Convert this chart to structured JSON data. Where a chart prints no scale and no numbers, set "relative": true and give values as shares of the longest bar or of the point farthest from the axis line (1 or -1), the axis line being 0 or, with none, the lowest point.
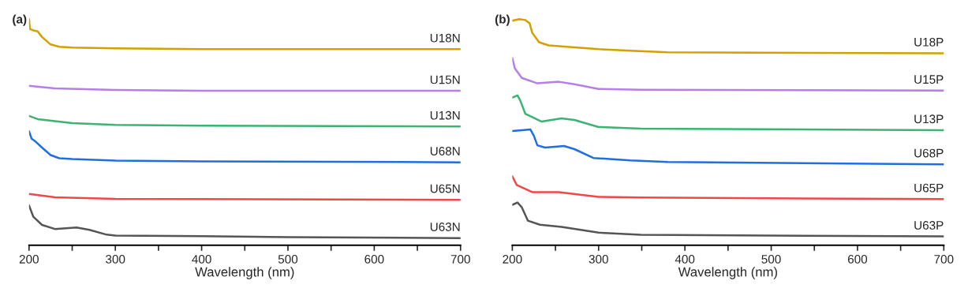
{
  "chart_data": [
    {
      "type": "line",
      "title": "(a)",
      "xlabel": "Wavelength (nm)",
      "relative": true,
      "xlim": [
        200,
        700
      ],
      "xticks": [
        200,
        {
          "value": 250,
          "label": null
        },
        300,
        {
          "value": 350,
          "label": null
        },
        400,
        {
          "value": 450,
          "label": null
        },
        500,
        {
          "value": 550,
          "label": null
        },
        600,
        {
          "value": 650,
          "label": null
        },
        700
      ],
      "tick_labels": "x",
      "grid": false,
      "legend": false,
      "series": [
        {
          "name": "U18N",
          "color": "#d4a000",
          "x": [
            200,
            201,
            205,
            210,
            215,
            225,
            235,
            250,
            300,
            400,
            500,
            600,
            700
          ],
          "values": [
            1.0,
            0.957,
            0.95,
            0.946,
            0.921,
            0.888,
            0.878,
            0.874,
            0.871,
            0.867,
            0.867,
            0.867,
            0.867
          ]
        },
        {
          "name": "U15N",
          "color": "#b57ee8",
          "x": [
            200,
            230,
            300,
            400,
            700
          ],
          "values": [
            0.705,
            0.694,
            0.687,
            0.683,
            0.683
          ]
        },
        {
          "name": "U13N",
          "color": "#3cb371",
          "x": [
            200,
            210,
            250,
            300,
            400,
            700
          ],
          "values": [
            0.572,
            0.558,
            0.54,
            0.532,
            0.529,
            0.525
          ]
        },
        {
          "name": "U68N",
          "color": "#1f6fe0",
          "x": [
            200,
            203,
            208,
            215,
            225,
            235,
            250,
            300,
            400,
            700
          ],
          "values": [
            0.504,
            0.471,
            0.457,
            0.432,
            0.399,
            0.385,
            0.381,
            0.374,
            0.371,
            0.367
          ]
        },
        {
          "name": "U65N",
          "color": "#f04848",
          "x": [
            200,
            230,
            300,
            700
          ],
          "values": [
            0.227,
            0.212,
            0.205,
            0.201
          ]
        },
        {
          "name": "U63N",
          "color": "#555555",
          "x": [
            200,
            205,
            215,
            230,
            255,
            270,
            290,
            300,
            400,
            500,
            700
          ],
          "values": [
            0.176,
            0.126,
            0.09,
            0.072,
            0.079,
            0.068,
            0.047,
            0.043,
            0.04,
            0.036,
            0.032
          ]
        }
      ]
    },
    {
      "type": "line",
      "title": "(b)",
      "xlabel": "Wavelength (nm)",
      "relative": true,
      "xlim": [
        200,
        700
      ],
      "xticks": [
        200,
        {
          "value": 250,
          "label": null
        },
        300,
        {
          "value": 350,
          "label": null
        },
        400,
        {
          "value": 450,
          "label": null
        },
        500,
        {
          "value": 550,
          "label": null
        },
        600,
        {
          "value": 650,
          "label": null
        },
        700
      ],
      "tick_labels": "x",
      "grid": false,
      "legend": false,
      "series": [
        {
          "name": "U18P",
          "color": "#d4a000",
          "x": [
            200,
            208,
            215,
            220,
            223,
            231,
            242,
            266,
            300,
            337,
            380,
            700
          ],
          "values": [
            0.993,
            1.0,
            0.996,
            0.982,
            0.94,
            0.898,
            0.884,
            0.877,
            0.867,
            0.86,
            0.853,
            0.849
          ]
        },
        {
          "name": "U15P",
          "color": "#b57ee8",
          "x": [
            200,
            203,
            211,
            229,
            254,
            272,
            300,
            349,
            700
          ],
          "values": [
            0.828,
            0.782,
            0.74,
            0.716,
            0.723,
            0.712,
            0.691,
            0.688,
            0.684
          ]
        },
        {
          "name": "U13P",
          "color": "#3cb371",
          "x": [
            200,
            206,
            209,
            215,
            234,
            257,
            272,
            300,
            349,
            700
          ],
          "values": [
            0.653,
            0.663,
            0.642,
            0.582,
            0.547,
            0.561,
            0.554,
            0.523,
            0.516,
            0.509
          ]
        },
        {
          "name": "U68P",
          "color": "#1f6fe0",
          "x": [
            200,
            211,
            221,
            225,
            229,
            238,
            260,
            272,
            294,
            337,
            380,
            700
          ],
          "values": [
            0.505,
            0.509,
            0.512,
            0.484,
            0.442,
            0.432,
            0.439,
            0.425,
            0.386,
            0.375,
            0.368,
            0.358
          ]
        },
        {
          "name": "U65P",
          "color": "#f04848",
          "x": [
            200,
            205,
            223,
            254,
            300,
            349,
            700
          ],
          "values": [
            0.305,
            0.267,
            0.235,
            0.235,
            0.214,
            0.211,
            0.204
          ]
        },
        {
          "name": "U63P",
          "color": "#555555",
          "x": [
            200,
            206,
            211,
            218,
            232,
            257,
            300,
            349,
            700
          ],
          "values": [
            0.179,
            0.189,
            0.168,
            0.109,
            0.091,
            0.081,
            0.056,
            0.046,
            0.039
          ]
        }
      ]
    }
  ]
}
